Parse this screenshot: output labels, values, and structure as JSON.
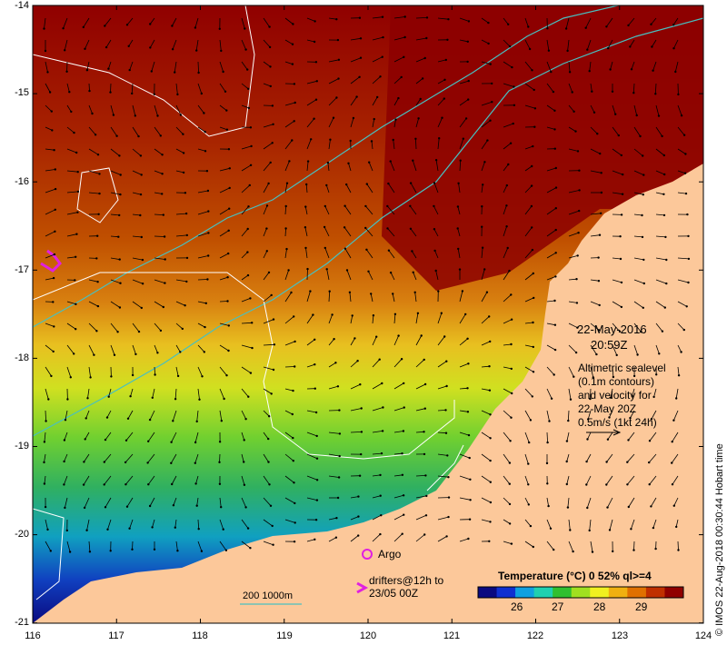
{
  "map": {
    "lon_ticks": [
      "116",
      "117",
      "118",
      "119",
      "120",
      "121",
      "122",
      "123",
      "124"
    ],
    "lat_ticks": [
      "-14",
      "-15",
      "-16",
      "-17",
      "-18",
      "-19",
      "-20",
      "-21"
    ]
  },
  "annotations": {
    "date": "22-May-2016",
    "time": "20:59Z",
    "altimetry_lines": [
      "Altimetric sealevel",
      "(0.1m contours)",
      "and velocity for",
      "22-May 20Z",
      "0.5m/s (1kt 24h)"
    ],
    "argo_label": "Argo",
    "drifters_line1": "drifters@12h to",
    "drifters_line2": "23/05 00Z",
    "bathy_label": "200  1000m",
    "credit": "© IMOS 22-Aug-2018 00:30:44 Hobart time"
  },
  "colorbar": {
    "title": "Temperature (°C) 0 52% ql>=4",
    "ticks": [
      "26",
      "27",
      "28",
      "29"
    ],
    "colors": [
      "#0a0a80",
      "#1030d0",
      "#10a0e0",
      "#20d0b0",
      "#30c030",
      "#a0e020",
      "#f0f020",
      "#f0b010",
      "#e07000",
      "#c03000",
      "#900000"
    ]
  },
  "colors": {
    "land": "#fcc89a",
    "bathy": "#48c0c0",
    "contour": "#ffffff",
    "argo": "#e020e0",
    "drifter": "#e020e0"
  }
}
